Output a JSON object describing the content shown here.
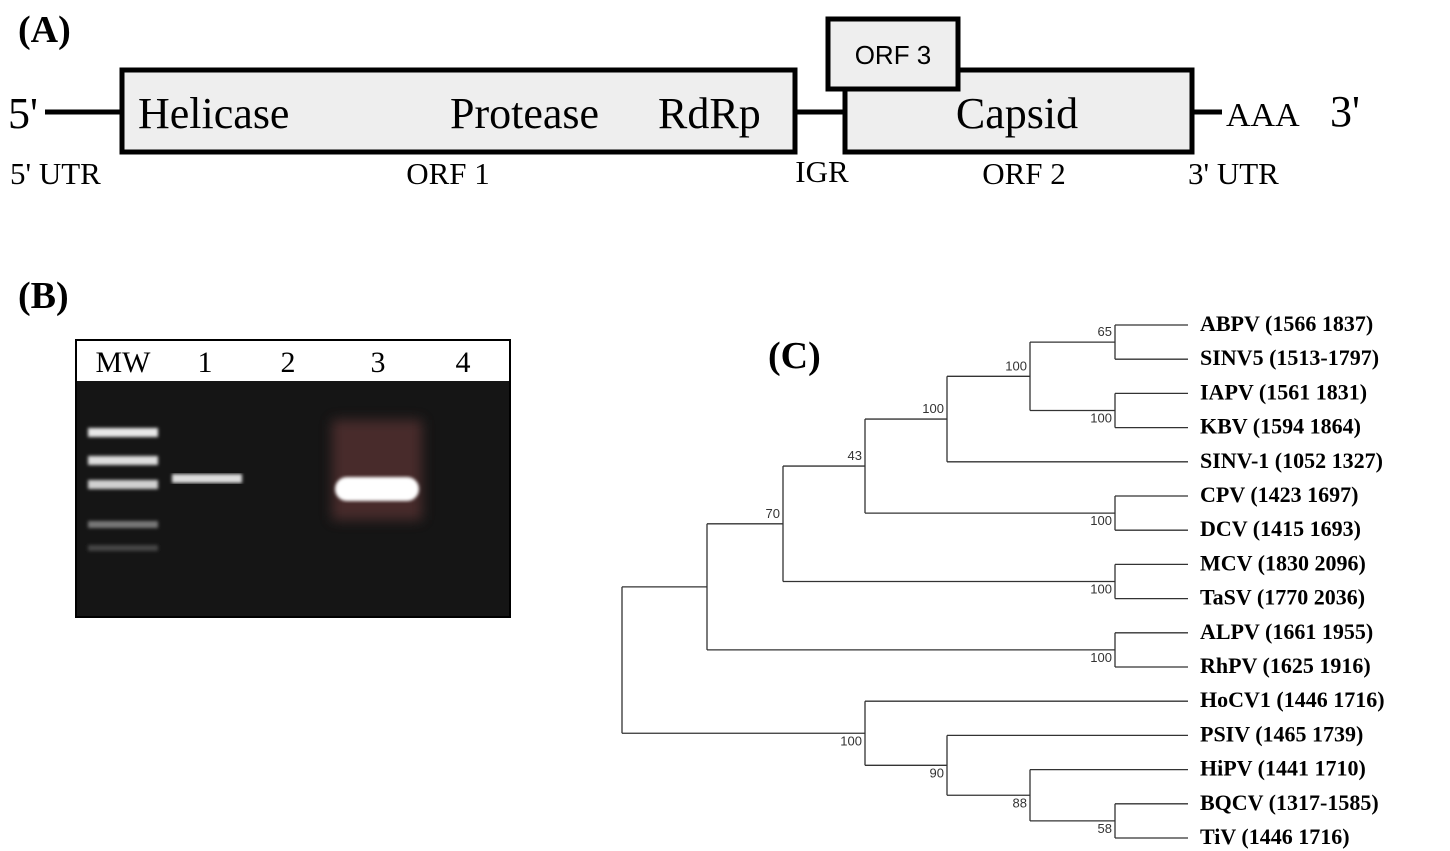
{
  "panel_a": {
    "label": "(A)",
    "five_prime": "5'",
    "helicase": "Helicase",
    "protease": "Protease",
    "rdrp": "RdRp",
    "orf3": "ORF 3",
    "capsid": "Capsid",
    "poly_a": "AAA",
    "three_prime": "3'",
    "regions": [
      "5' UTR",
      "ORF 1",
      "IGR",
      "ORF 2",
      "3' UTR"
    ]
  },
  "panel_b": {
    "label": "(B)",
    "lanes": [
      "MW",
      "1",
      "2",
      "3",
      "4"
    ]
  },
  "panel_c": {
    "label": "(C)",
    "leaves": [
      "ABPV (1566 1837)",
      "SINV5 (1513-1797)",
      "IAPV (1561 1831)",
      "KBV (1594 1864)",
      "SINV-1 (1052 1327)",
      "CPV (1423 1697)",
      "DCV (1415 1693)",
      "MCV (1830 2096)",
      "TaSV (1770 2036)",
      "ALPV (1661 1955)",
      "RhPV (1625 1916)",
      "HoCV1 (1446 1716)",
      "PSIV (1465 1739)",
      "HiPV (1441 1710)",
      "BQCV (1317-1585)",
      "TiV (1446 1716)"
    ],
    "bootstrap": [
      65,
      100,
      100,
      100,
      43,
      100,
      70,
      100,
      100,
      100,
      90,
      88,
      58
    ]
  }
}
